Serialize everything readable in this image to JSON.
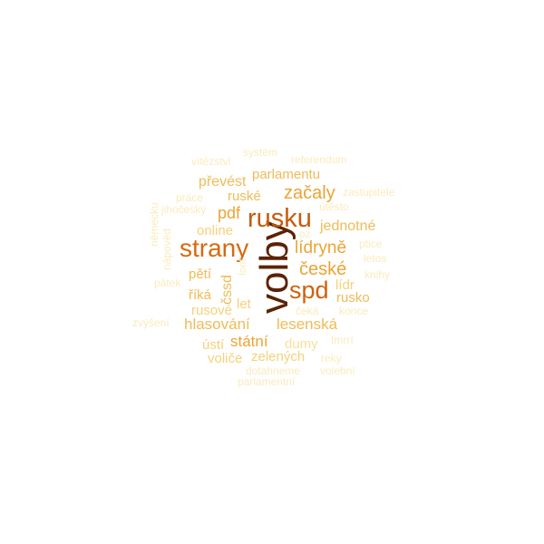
{
  "words": [
    {
      "text": "volby",
      "color": "#5c2204",
      "vertical": true
    },
    {
      "text": "rusku",
      "color": "#c85a0c"
    },
    {
      "text": "strany",
      "color": "#d8690f"
    },
    {
      "text": "spd",
      "color": "#cf620c"
    },
    {
      "text": "začaly",
      "color": "#eba434"
    },
    {
      "text": "české",
      "color": "#eba434"
    },
    {
      "text": "lídryně",
      "color": "#eba434"
    },
    {
      "text": "jednotné",
      "color": "#f0bb55"
    },
    {
      "text": "pdf",
      "color": "#eba434"
    },
    {
      "text": "ruské",
      "color": "#f0bb55"
    },
    {
      "text": "převést",
      "color": "#f0bb55"
    },
    {
      "text": "parlamentu",
      "color": "#f0bb55"
    },
    {
      "text": "online",
      "color": "#f5d27a"
    },
    {
      "text": "pětí",
      "color": "#f0bb55"
    },
    {
      "text": "čssd",
      "color": "#f0bb55",
      "vertical": true
    },
    {
      "text": "říká",
      "color": "#f0bb55"
    },
    {
      "text": "let",
      "color": "#f5d27a"
    },
    {
      "text": "lídr",
      "color": "#f5d27a"
    },
    {
      "text": "rusko",
      "color": "#f0bb55"
    },
    {
      "text": "rusové",
      "color": "#f5d27a"
    },
    {
      "text": "hlasování",
      "color": "#f0bb55"
    },
    {
      "text": "lesenská",
      "color": "#f0bb55"
    },
    {
      "text": "státní",
      "color": "#eba434"
    },
    {
      "text": "ústí",
      "color": "#f5d27a"
    },
    {
      "text": "dumy",
      "color": "#f7df9a"
    },
    {
      "text": "voliče",
      "color": "#f5d27a"
    },
    {
      "text": "zelených",
      "color": "#f5d27a"
    },
    {
      "text": "systém",
      "color": "#faebbd"
    },
    {
      "text": "referendum",
      "color": "#faebbd"
    },
    {
      "text": "vítězství",
      "color": "#faebbd"
    },
    {
      "text": "práce",
      "color": "#faebbd"
    },
    {
      "text": "jihočeský",
      "color": "#faebbd"
    },
    {
      "text": "zastupitele",
      "color": "#faebbd"
    },
    {
      "text": "útěsto",
      "color": "#faebbd"
    },
    {
      "text": "oz",
      "color": "#faebbd"
    },
    {
      "text": "ptice",
      "color": "#faebbd"
    },
    {
      "text": "letos",
      "color": "#faebbd"
    },
    {
      "text": "knihy",
      "color": "#faebbd"
    },
    {
      "text": "pátek",
      "color": "#faebbd"
    },
    {
      "text": "čeká",
      "color": "#faebbd"
    },
    {
      "text": "konce",
      "color": "#faebbd"
    },
    {
      "text": "zvýšení",
      "color": "#faebbd"
    },
    {
      "text": "tmrrí",
      "color": "#faebbd"
    },
    {
      "text": "reky",
      "color": "#faebbd"
    },
    {
      "text": "dotahneme",
      "color": "#faebbd"
    },
    {
      "text": "volební",
      "color": "#faebbd"
    },
    {
      "text": "parlamentní",
      "color": "#faebbd"
    },
    {
      "text": "německu",
      "color": "#faebbd",
      "vertical": true
    },
    {
      "text": "nápověd",
      "color": "#faebbd",
      "vertical": true
    },
    {
      "text": "fonf",
      "color": "#faebbd",
      "vertical": true
    }
  ]
}
